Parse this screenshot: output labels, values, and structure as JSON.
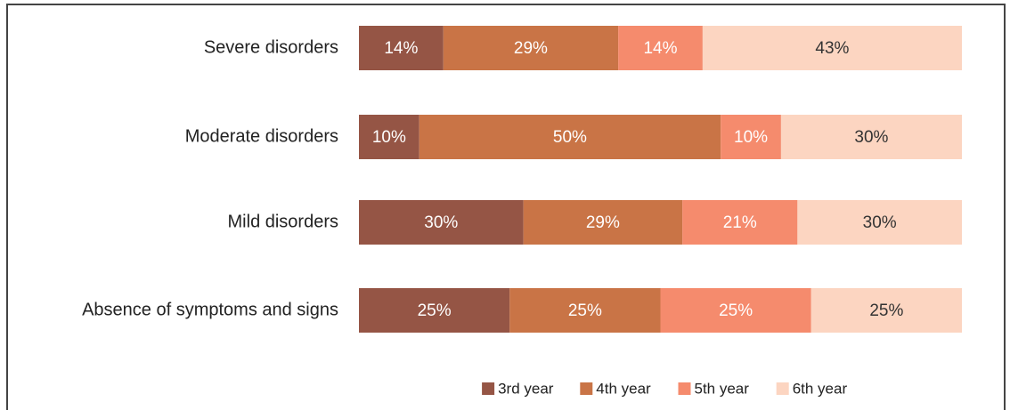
{
  "chart_data": {
    "type": "bar",
    "orientation": "horizontal",
    "stacked": "percent",
    "categories": [
      "Severe disorders",
      "Moderate  disorders",
      "Mild  disorders",
      "Absence of symptoms and signs"
    ],
    "series": [
      {
        "name": "3rd year",
        "color": "#955545",
        "values": [
          14,
          10,
          30,
          25
        ],
        "value_labels": [
          "14%",
          "10%",
          "30%",
          "25%"
        ]
      },
      {
        "name": "4th year",
        "color": "#c97446",
        "values": [
          29,
          50,
          29,
          25
        ],
        "value_labels": [
          "29%",
          "50%",
          "29%",
          "25%"
        ]
      },
      {
        "name": "5th year",
        "color": "#f58b6d",
        "values": [
          14,
          10,
          21,
          25
        ],
        "value_labels": [
          "14%",
          "10%",
          "21%",
          "25%"
        ]
      },
      {
        "name": "6th year",
        "color": "#fcd5c1",
        "values": [
          43,
          30,
          30,
          25
        ],
        "value_labels": [
          "43%",
          "30%",
          "30%",
          "25%"
        ]
      }
    ],
    "legend": "bottom"
  }
}
